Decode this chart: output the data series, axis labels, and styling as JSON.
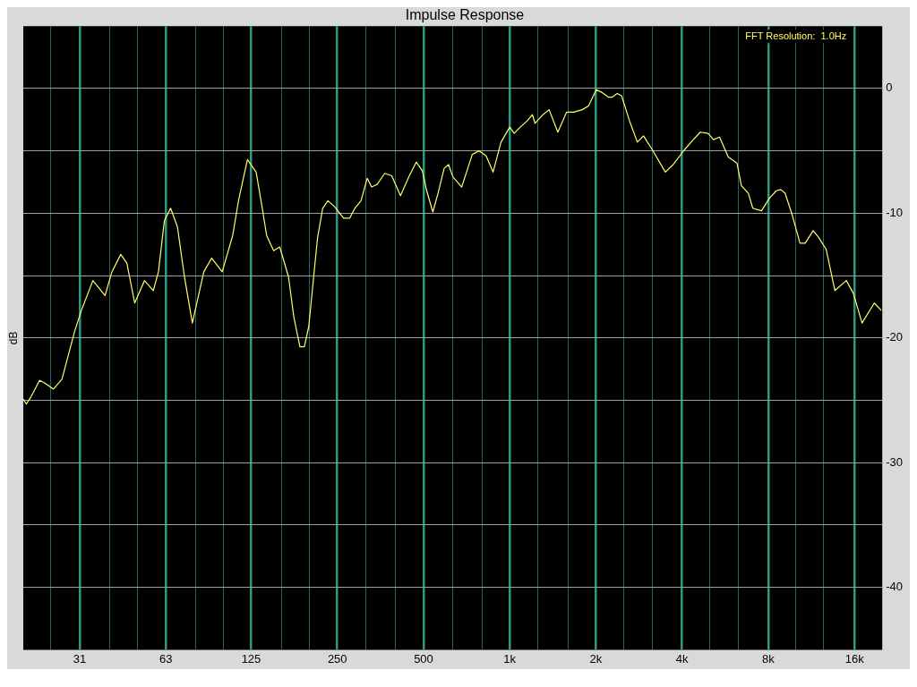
{
  "chart_data": {
    "type": "line",
    "title": "Impulse Response",
    "ylabel": "dB",
    "annotations": [
      "FFT Resolution:  1.0Hz"
    ],
    "x": [
      20,
      20.5,
      21.3,
      22.8,
      23.7,
      25.5,
      27.3,
      30.2,
      31.9,
      35.0,
      38.6,
      40.8,
      43.8,
      46.0,
      49.0,
      53.0,
      56.9,
      59.3,
      62.2,
      65.4,
      69.1,
      73.1,
      77.9,
      85.4,
      91.0,
      99.0,
      107.7,
      113.1,
      121.3,
      130.1,
      136.7,
      141.6,
      149.8,
      157.3,
      168.8,
      176.1,
      185.0,
      191.7,
      198.6,
      213.1,
      222.2,
      231.8,
      245.1,
      262.8,
      275.9,
      287.8,
      302.4,
      317.8,
      329.4,
      343.8,
      366.0,
      387.0,
      415.4,
      445.9,
      471.6,
      495.1,
      512.8,
      538.7,
      561.7,
      590.2,
      611.5,
      633.4,
      679.5,
      739.4,
      782.0,
      827.0,
      874.7,
      932.2,
      1000,
      1036,
      1088,
      1151,
      1200,
      1226,
      1306,
      1372,
      1472,
      1579,
      1671,
      1792,
      1883,
      2006,
      2092,
      2213,
      2276,
      2374,
      2459,
      2620,
      2791,
      2931,
      3145,
      3495,
      3723,
      4080,
      4376,
      4630,
      4932,
      5145,
      5405,
      5798,
      6220,
      6442,
      6815,
      7059,
      7573,
      8068,
      8534,
      8838,
      9154,
      9684,
      10318,
      10763,
      11467,
      11960,
      12742,
      13668,
      14977,
      15843,
      16996,
      18760,
      19840
    ],
    "values": [
      -24.9,
      -25.3,
      -24.7,
      -23.4,
      -23.6,
      -24.1,
      -23.3,
      -19.5,
      -17.8,
      -15.4,
      -16.6,
      -14.7,
      -13.3,
      -14.0,
      -17.2,
      -15.4,
      -16.2,
      -14.7,
      -10.6,
      -9.6,
      -11.1,
      -15.1,
      -18.8,
      -14.7,
      -13.6,
      -14.7,
      -11.8,
      -8.9,
      -5.7,
      -6.7,
      -9.6,
      -11.8,
      -13.0,
      -12.7,
      -15.1,
      -18.3,
      -20.7,
      -20.7,
      -19.1,
      -12.0,
      -9.6,
      -9.0,
      -9.5,
      -10.4,
      -10.4,
      -9.6,
      -9.0,
      -7.2,
      -7.9,
      -7.7,
      -6.8,
      -7.0,
      -8.6,
      -7.0,
      -5.9,
      -6.6,
      -8.2,
      -9.9,
      -8.4,
      -6.4,
      -6.1,
      -7.1,
      -7.9,
      -5.3,
      -5.0,
      -5.4,
      -6.7,
      -4.3,
      -3.1,
      -3.6,
      -3.1,
      -2.6,
      -2.1,
      -2.8,
      -2.1,
      -1.7,
      -3.5,
      -1.9,
      -1.9,
      -1.7,
      -1.4,
      -0.1,
      -0.3,
      -0.7,
      -0.7,
      -0.4,
      -0.6,
      -2.6,
      -4.3,
      -3.8,
      -4.9,
      -6.7,
      -6.1,
      -4.9,
      -4.1,
      -3.5,
      -3.6,
      -4.1,
      -3.9,
      -5.5,
      -6.0,
      -7.8,
      -8.4,
      -9.6,
      -9.8,
      -8.8,
      -8.2,
      -8.1,
      -8.4,
      -10.1,
      -12.4,
      -12.4,
      -11.4,
      -11.9,
      -12.9,
      -16.2,
      -15.4,
      -16.4,
      -18.8,
      -17.2,
      -17.8
    ],
    "color": "#ffff66",
    "log": "x",
    "grid": true,
    "legend": false,
    "marker": "none",
    "line_style": "solid",
    "xlim": [
      20,
      20000
    ],
    "ylim": [
      -45,
      5
    ],
    "xticks": [
      {
        "value": 25,
        "label": null
      },
      {
        "value": 31.5,
        "label": "31"
      },
      {
        "value": 40,
        "label": null
      },
      {
        "value": 50,
        "label": null
      },
      {
        "value": 63,
        "label": "63"
      },
      {
        "value": 80,
        "label": null
      },
      {
        "value": 100,
        "label": null
      },
      {
        "value": 125,
        "label": "125"
      },
      {
        "value": 160,
        "label": null
      },
      {
        "value": 200,
        "label": null
      },
      {
        "value": 250,
        "label": "250"
      },
      {
        "value": 315,
        "label": null
      },
      {
        "value": 400,
        "label": null
      },
      {
        "value": 500,
        "label": "500"
      },
      {
        "value": 630,
        "label": null
      },
      {
        "value": 800,
        "label": null
      },
      {
        "value": 1000,
        "label": "1k"
      },
      {
        "value": 1250,
        "label": null
      },
      {
        "value": 1600,
        "label": null
      },
      {
        "value": 2000,
        "label": "2k"
      },
      {
        "value": 2500,
        "label": null
      },
      {
        "value": 3150,
        "label": null
      },
      {
        "value": 4000,
        "label": "4k"
      },
      {
        "value": 5000,
        "label": null
      },
      {
        "value": 6300,
        "label": null
      },
      {
        "value": 8000,
        "label": "8k"
      },
      {
        "value": 10000,
        "label": null
      },
      {
        "value": 12500,
        "label": null
      },
      {
        "value": 16000,
        "label": "16k"
      }
    ],
    "yticks": [
      0,
      {
        "value": -5,
        "label": null
      },
      -10,
      {
        "value": -15,
        "label": null
      },
      -20,
      {
        "value": -25,
        "label": null
      },
      -30,
      {
        "value": -35,
        "label": null
      },
      -40
    ]
  }
}
